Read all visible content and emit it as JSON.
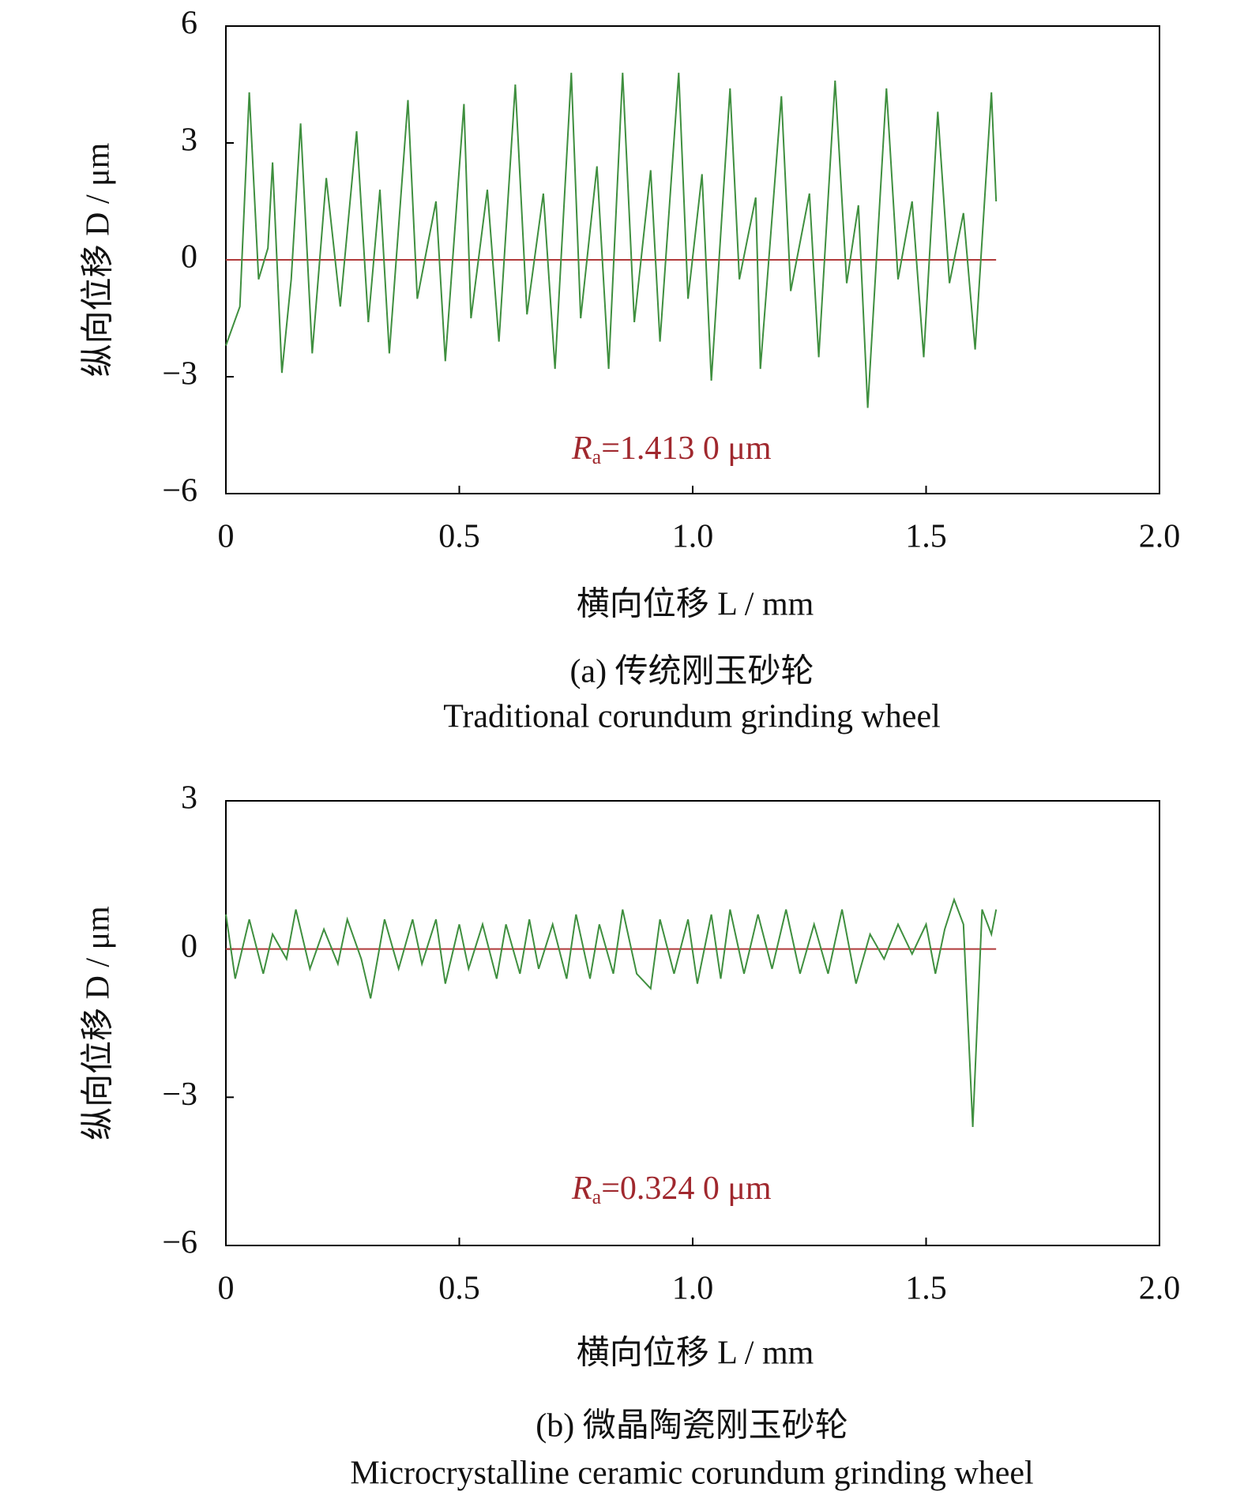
{
  "charts": [
    {
      "chart_data": {
        "type": "line",
        "ylabel": "纵向位移 D / μm",
        "xlabel": "横向位移 L / mm",
        "caption": "(a) 传统刚玉砂轮",
        "caption_en": "Traditional corundum grinding wheel",
        "annotation": {
          "symbol": "R",
          "subscript": "a",
          "text": "=1.413 0 μm"
        },
        "xlim": [
          0,
          2
        ],
        "xticks": [
          0,
          0.5,
          {
            "value": 1,
            "label": "1.0"
          },
          1.5,
          {
            "value": 2,
            "label": "2.0"
          }
        ],
        "ylim": [
          -6,
          6
        ],
        "yticks": [
          {
            "value": -6,
            "label": "−6"
          },
          {
            "value": -3,
            "label": "−3"
          },
          0,
          3,
          6
        ],
        "zero_line_color": "#b03a3a",
        "series": [
          {
            "color": "#3f8f3f",
            "x": [
              0,
              0.03,
              0.05,
              0.07,
              0.09,
              0.1,
              0.12,
              0.14,
              0.16,
              0.185,
              0.215,
              0.245,
              0.28,
              0.305,
              0.33,
              0.35,
              0.39,
              0.41,
              0.45,
              0.47,
              0.51,
              0.525,
              0.56,
              0.585,
              0.62,
              0.645,
              0.68,
              0.705,
              0.74,
              0.76,
              0.795,
              0.82,
              0.85,
              0.875,
              0.91,
              0.93,
              0.97,
              0.99,
              1.02,
              1.04,
              1.08,
              1.1,
              1.135,
              1.145,
              1.19,
              1.21,
              1.25,
              1.27,
              1.305,
              1.33,
              1.355,
              1.375,
              1.415,
              1.44,
              1.47,
              1.495,
              1.525,
              1.55,
              1.58,
              1.605,
              1.64,
              1.65
            ],
            "values": [
              -2.2,
              -1.2,
              4.3,
              -0.5,
              0.3,
              2.5,
              -2.9,
              -0.5,
              3.5,
              -2.4,
              2.1,
              -1.2,
              3.3,
              -1.6,
              1.8,
              -2.4,
              4.1,
              -1.0,
              1.5,
              -2.6,
              4.0,
              -1.5,
              1.8,
              -2.1,
              4.5,
              -1.4,
              1.7,
              -2.8,
              4.8,
              -1.5,
              2.4,
              -2.8,
              4.8,
              -1.6,
              2.3,
              -2.1,
              4.8,
              -1.0,
              2.2,
              -3.1,
              4.4,
              -0.5,
              1.6,
              -2.8,
              4.2,
              -0.8,
              1.7,
              -2.5,
              4.6,
              -0.6,
              1.4,
              -3.8,
              4.4,
              -0.5,
              1.5,
              -2.5,
              3.8,
              -0.6,
              1.2,
              -2.3,
              4.3,
              1.5
            ]
          }
        ]
      }
    },
    {
      "chart_data": {
        "type": "line",
        "ylabel": "纵向位移 D / μm",
        "xlabel": "横向位移 L / mm",
        "caption": "(b) 微晶陶瓷刚玉砂轮",
        "caption_en": "Microcrystalline ceramic corundum grinding wheel",
        "annotation": {
          "symbol": "R",
          "subscript": "a",
          "text": "=0.324 0 μm"
        },
        "xlim": [
          0,
          2
        ],
        "xticks": [
          0,
          0.5,
          {
            "value": 1,
            "label": "1.0"
          },
          1.5,
          {
            "value": 2,
            "label": "2.0"
          }
        ],
        "ylim": [
          -6,
          3
        ],
        "yticks": [
          {
            "value": -6,
            "label": "−6"
          },
          {
            "value": -3,
            "label": "−3"
          },
          0,
          3
        ],
        "zero_line_color": "#b03a3a",
        "series": [
          {
            "color": "#3f8f3f",
            "x": [
              0,
              0.02,
              0.05,
              0.08,
              0.1,
              0.13,
              0.15,
              0.18,
              0.21,
              0.24,
              0.26,
              0.29,
              0.31,
              0.34,
              0.37,
              0.4,
              0.42,
              0.45,
              0.47,
              0.5,
              0.52,
              0.55,
              0.58,
              0.6,
              0.63,
              0.65,
              0.67,
              0.7,
              0.73,
              0.75,
              0.78,
              0.8,
              0.83,
              0.85,
              0.88,
              0.91,
              0.93,
              0.96,
              0.99,
              1.01,
              1.04,
              1.06,
              1.08,
              1.11,
              1.14,
              1.17,
              1.2,
              1.23,
              1.26,
              1.29,
              1.32,
              1.35,
              1.38,
              1.41,
              1.44,
              1.47,
              1.5,
              1.52,
              1.54,
              1.56,
              1.58,
              1.6,
              1.62,
              1.64,
              1.65
            ],
            "values": [
              0.7,
              -0.6,
              0.6,
              -0.5,
              0.3,
              -0.2,
              0.8,
              -0.4,
              0.4,
              -0.3,
              0.6,
              -0.2,
              -1.0,
              0.6,
              -0.4,
              0.6,
              -0.3,
              0.6,
              -0.7,
              0.5,
              -0.4,
              0.5,
              -0.6,
              0.5,
              -0.5,
              0.6,
              -0.4,
              0.5,
              -0.6,
              0.7,
              -0.6,
              0.5,
              -0.5,
              0.8,
              -0.5,
              -0.8,
              0.6,
              -0.5,
              0.6,
              -0.7,
              0.7,
              -0.6,
              0.8,
              -0.5,
              0.7,
              -0.4,
              0.8,
              -0.5,
              0.5,
              -0.5,
              0.8,
              -0.7,
              0.3,
              -0.2,
              0.5,
              -0.1,
              0.5,
              -0.5,
              0.4,
              1.0,
              0.5,
              -3.6,
              0.8,
              0.3,
              0.8
            ]
          }
        ]
      }
    }
  ]
}
